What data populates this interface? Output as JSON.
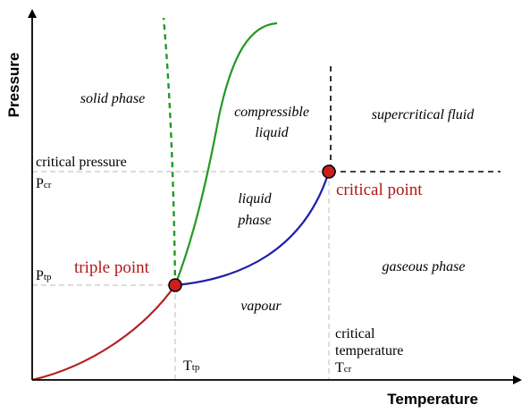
{
  "axes": {
    "x_title": "Temperature",
    "y_title": "Pressure"
  },
  "regions": {
    "solid": "solid phase",
    "compressible_1": "compressible",
    "compressible_2": "liquid",
    "supercritical": "supercritical fluid",
    "liquid_1": "liquid",
    "liquid_2": "phase",
    "gaseous": "gaseous phase",
    "vapour": "vapour"
  },
  "labels": {
    "critical_pressure": "critical pressure",
    "p_cr_main": "P",
    "p_cr_sub": "cr",
    "p_tp_main": "P",
    "p_tp_sub": "tp",
    "t_tp_main": "T",
    "t_tp_sub": "tp",
    "critical_temperature_1": "critical",
    "critical_temperature_2": "temperature",
    "t_cr_main": "T",
    "t_cr_sub": "cr"
  },
  "points": {
    "triple": "triple point",
    "critical": "critical point"
  },
  "colors": {
    "sublimation_curve": "#b22222",
    "vaporization_curve": "#1f1fa8",
    "melting_curve": "#229922",
    "point_fill": "#cc1e1e",
    "point_label": "#b01818",
    "guide_line": "#c8c8c8"
  }
}
